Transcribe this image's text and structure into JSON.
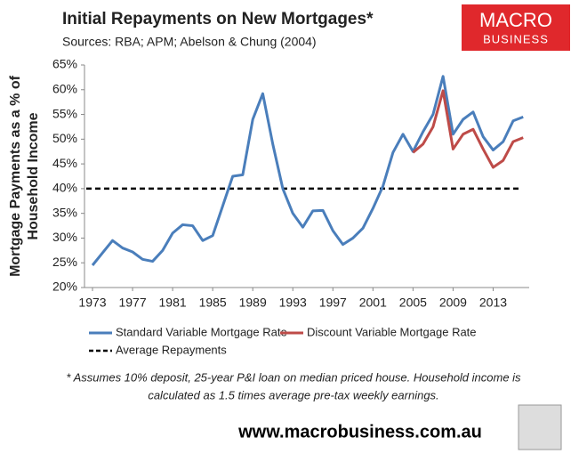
{
  "chart_data": {
    "type": "line",
    "title": "Initial Repayments on New Mortgages*",
    "subtitle": "Sources: RBA; APM; Abelson & Chung (2004)",
    "y_label": [
      "Mortgage Payments as a % of",
      "Household Income"
    ],
    "x": [
      1973,
      1974,
      1975,
      1976,
      1977,
      1978,
      1979,
      1980,
      1981,
      1982,
      1983,
      1984,
      1985,
      1986,
      1987,
      1988,
      1989,
      1990,
      1991,
      1992,
      1993,
      1994,
      1995,
      1996,
      1997,
      1998,
      1999,
      2000,
      2001,
      2002,
      2003,
      2004,
      2005,
      2006,
      2007,
      2008,
      2009,
      2010,
      2011,
      2012,
      2013,
      2014,
      2015,
      2016
    ],
    "series": [
      {
        "name": "Standard Variable Mortgage Rate",
        "color": "#4a7ebb",
        "values": [
          24.5,
          27,
          29.5,
          28,
          27.2,
          25.7,
          25.3,
          27.5,
          31,
          32.7,
          32.5,
          29.5,
          30.5,
          36.5,
          42.5,
          42.8,
          54,
          59.2,
          49,
          40,
          35,
          32.2,
          35.5,
          35.6,
          31.5,
          28.7,
          30,
          32,
          36,
          40.5,
          47.3,
          51,
          47.5,
          51.5,
          55,
          62.7,
          51,
          54,
          55.5,
          50.5,
          47.8,
          49.5,
          53.7,
          54.5
        ]
      },
      {
        "name": "Discount Variable Mortgage Rate",
        "color": "#be4b48",
        "values": [
          null,
          null,
          null,
          null,
          null,
          null,
          null,
          null,
          null,
          null,
          null,
          null,
          null,
          null,
          null,
          null,
          null,
          null,
          null,
          null,
          null,
          null,
          null,
          null,
          null,
          null,
          null,
          null,
          null,
          null,
          null,
          null,
          47.3,
          49,
          52.5,
          59.8,
          48,
          51,
          52,
          48,
          44.3,
          45.7,
          49.5,
          50.3
        ]
      }
    ],
    "reference_line": {
      "name": "Average Repayments",
      "value": 40,
      "color": "#000000"
    },
    "xlim": [
      1972.2,
      2016.6
    ],
    "xticks": [
      1973,
      1977,
      1981,
      1985,
      1989,
      1993,
      1997,
      2001,
      2005,
      2009,
      2013
    ],
    "ylim": [
      20,
      65
    ],
    "yticks": [
      {
        "value": 20,
        "label": "20%"
      },
      {
        "value": 25,
        "label": "25%"
      },
      {
        "value": 30,
        "label": "30%"
      },
      {
        "value": 35,
        "label": "35%"
      },
      {
        "value": 40,
        "label": "40%"
      },
      {
        "value": 45,
        "label": "45%"
      },
      {
        "value": 50,
        "label": "50%"
      },
      {
        "value": 55,
        "label": "55%"
      },
      {
        "value": 60,
        "label": "60%"
      },
      {
        "value": 65,
        "label": "65%"
      }
    ],
    "grid": false,
    "footnote": [
      "* Assumes 10% deposit, 25-year P&I loan on median priced house. Household income is",
      "calculated as 1.5 times average pre-tax weekly earnings."
    ],
    "logo": [
      "MACRO",
      "BUSINESS"
    ],
    "url": "www.macrobusiness.com.au"
  }
}
